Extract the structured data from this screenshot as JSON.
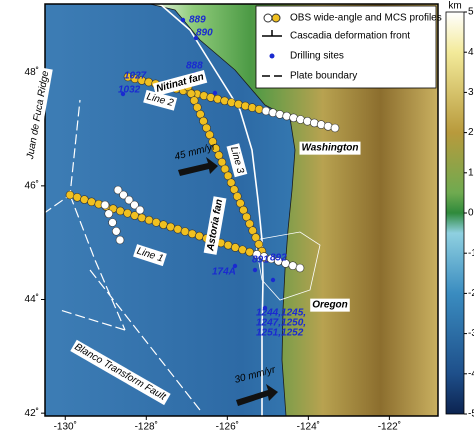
{
  "legend": [
    "OBS wide-angle and MCS profiles",
    "Cascadia deformation front",
    "Drilling sites",
    "Plate boundary"
  ],
  "labels": {
    "nitinat": "Nitinat fan",
    "astoria": "Astoria fan",
    "line1": "Line 1",
    "line2": "Line 2",
    "line3": "Line 3",
    "washington": "Washington",
    "oregon": "Oregon",
    "jdf": "Juan de Fuca Ridge",
    "blanco": "Blanco Transform Fault",
    "rate1": "45 mm/yr",
    "rate2": "30 mm/yr"
  },
  "sites": [
    "889",
    "890",
    "888",
    "1027",
    "1032",
    "174A",
    "891",
    "892",
    "1244,1245,",
    "1247,1250,",
    "1251,1252"
  ],
  "axes": {
    "xlim": [
      -130.5,
      -120.8
    ],
    "ylim": [
      41.95,
      49.2
    ],
    "xticks": [
      {
        "value": -130,
        "label": "-130˚"
      },
      {
        "value": -128,
        "label": "-128˚"
      },
      {
        "value": -126,
        "label": "-126˚"
      },
      {
        "value": -124,
        "label": "-124˚"
      },
      {
        "value": -122,
        "label": "-122˚"
      }
    ],
    "yticks": [
      {
        "value": 42,
        "label": "42˚"
      },
      {
        "value": 44,
        "label": "44˚"
      },
      {
        "value": 46,
        "label": "46˚"
      },
      {
        "value": 48,
        "label": "48˚"
      }
    ]
  },
  "colorbar": {
    "title": "km",
    "lim": [
      -5,
      5
    ],
    "ticks": [
      5,
      4,
      3,
      2,
      1,
      0,
      -1,
      -2,
      -3,
      -4,
      -5
    ]
  }
}
